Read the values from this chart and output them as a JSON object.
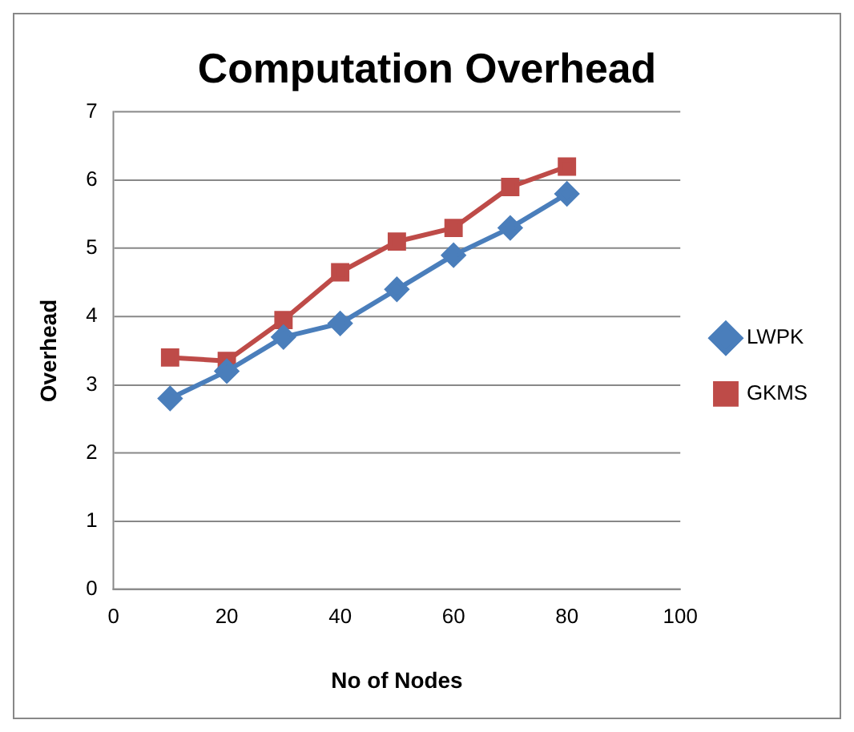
{
  "chart_data": {
    "type": "line",
    "title": "Computation Overhead",
    "xlabel": "No of Nodes",
    "ylabel": "Overhead",
    "x": [
      10,
      20,
      30,
      40,
      50,
      60,
      70,
      80
    ],
    "series": [
      {
        "name": "LWPK",
        "color": "#4a7ebb",
        "marker": "diamond",
        "values": [
          2.8,
          3.2,
          3.7,
          3.9,
          4.4,
          4.9,
          5.3,
          5.8
        ]
      },
      {
        "name": "GKMS",
        "color": "#be4b48",
        "marker": "square",
        "values": [
          3.4,
          3.35,
          3.95,
          4.65,
          5.1,
          5.3,
          5.9,
          6.2
        ]
      }
    ],
    "xlim": [
      0,
      100
    ],
    "xticks": [
      0,
      20,
      40,
      60,
      80,
      100
    ],
    "ylim": [
      0,
      7
    ],
    "yticks": [
      0,
      1,
      2,
      3,
      4,
      5,
      6,
      7
    ],
    "grid": "y",
    "legend": "right"
  }
}
